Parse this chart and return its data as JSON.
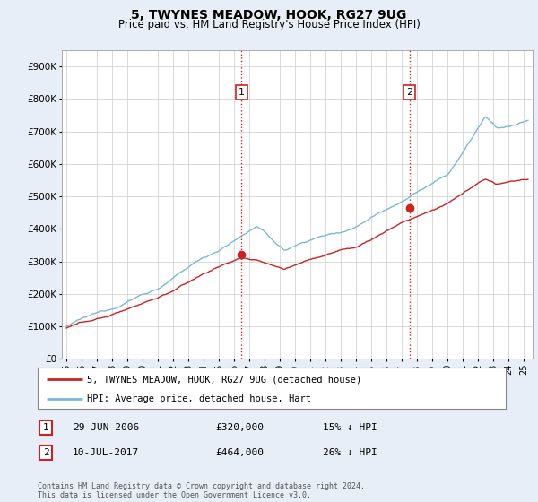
{
  "title": "5, TWYNES MEADOW, HOOK, RG27 9UG",
  "subtitle": "Price paid vs. HM Land Registry's House Price Index (HPI)",
  "ylim": [
    0,
    950000
  ],
  "hpi_color": "#7ab8d9",
  "price_color": "#cc2222",
  "vline_color": "#cc2222",
  "transaction1": {
    "date_num": 2006.49,
    "price": 320000,
    "label": "1"
  },
  "transaction2": {
    "date_num": 2017.52,
    "price": 464000,
    "label": "2"
  },
  "legend_items": [
    {
      "label": "5, TWYNES MEADOW, HOOK, RG27 9UG (detached house)",
      "color": "#cc2222"
    },
    {
      "label": "HPI: Average price, detached house, Hart",
      "color": "#7ab8d9"
    }
  ],
  "table_rows": [
    {
      "label": "1",
      "date": "29-JUN-2006",
      "price": "£320,000",
      "change": "15% ↓ HPI"
    },
    {
      "label": "2",
      "date": "10-JUL-2017",
      "price": "£464,000",
      "change": "26% ↓ HPI"
    }
  ],
  "footer": "Contains HM Land Registry data © Crown copyright and database right 2024.\nThis data is licensed under the Open Government Licence v3.0.",
  "background_color": "#e8eef7",
  "plot_bg_color": "#ffffff",
  "yticks": [
    0,
    100000,
    200000,
    300000,
    400000,
    500000,
    600000,
    700000,
    800000,
    900000
  ],
  "ylabels": [
    "£0",
    "£100K",
    "£200K",
    "£300K",
    "£400K",
    "£500K",
    "£600K",
    "£700K",
    "£800K",
    "£900K"
  ]
}
